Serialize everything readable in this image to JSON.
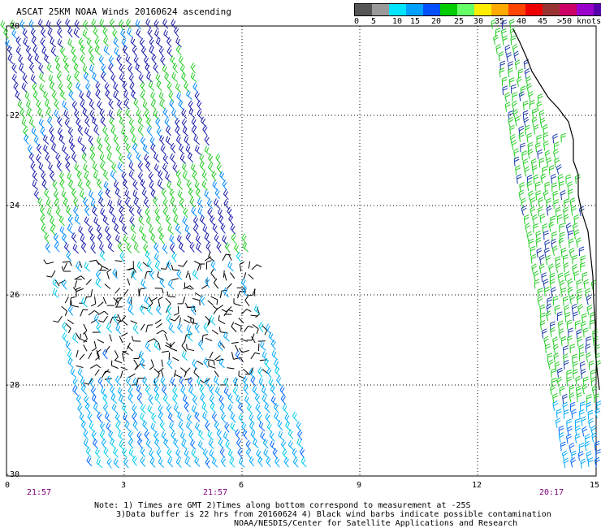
{
  "header": {
    "title": "ASCAT 25KM NOAA Winds 20160624 ascending"
  },
  "legend": {
    "colors": [
      "#555555",
      "#999999",
      "#00e5ff",
      "#00a0ff",
      "#0050ff",
      "#00cc00",
      "#66ff66",
      "#ffee00",
      "#ffaa00",
      "#ff4400",
      "#ee0000",
      "#993333",
      "#cc0066",
      "#9900cc",
      "#5500aa",
      "#220066"
    ],
    "labels": [
      "0",
      "5",
      "10",
      "15",
      "20",
      "25",
      "30",
      "35",
      "40",
      "45",
      ">50 knots"
    ]
  },
  "axes": {
    "x_ticks": [
      "0",
      "3",
      "6",
      "9",
      "12",
      "15"
    ],
    "y_ticks": [
      "-20",
      "-22",
      "-24",
      "-26",
      "-28",
      "-30"
    ]
  },
  "times": [
    "21:57",
    "21:57",
    "20:17"
  ],
  "notes": {
    "line1": "Note: 1) Times are GMT 2)Times along bottom correspond to measurement at -25S",
    "line2": "3)Data buffer is 22 hrs from 20160624 4) Black wind barbs indicate possible contamination",
    "line3": "NOAA/NESDIS/Center for Satellite Applications and Research"
  }
}
